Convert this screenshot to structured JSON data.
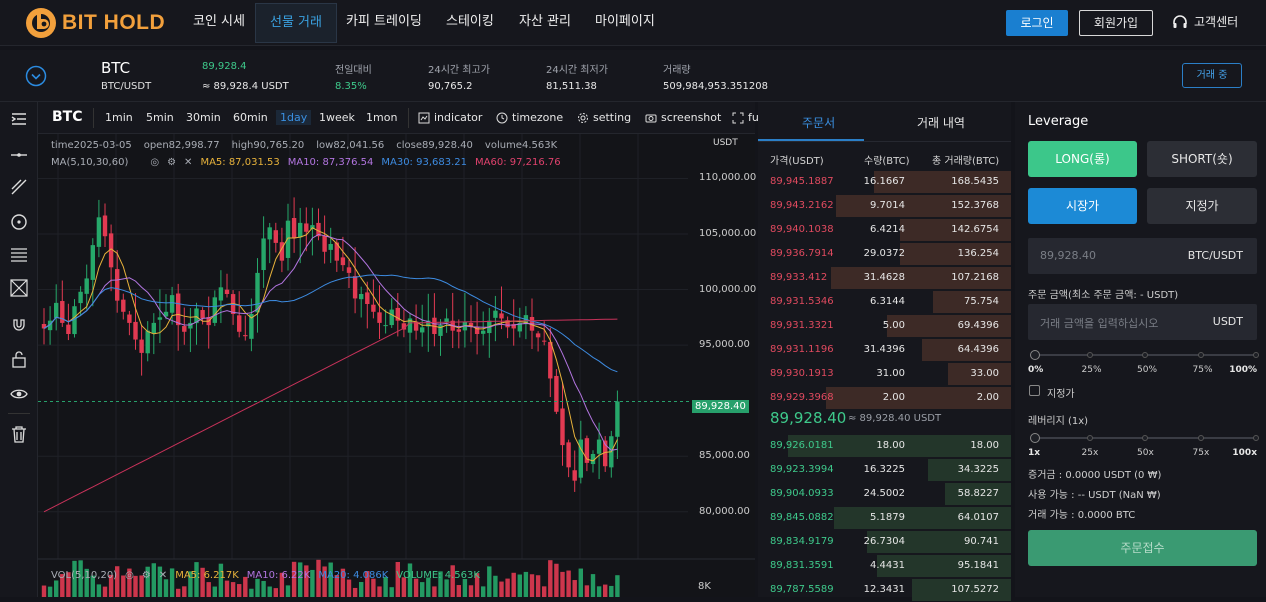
{
  "brand": {
    "name": "BIT HOLD",
    "accent": "#f2a03c"
  },
  "nav": {
    "items": [
      {
        "label": "코인 시세"
      },
      {
        "label": "선물 거래",
        "active": true
      },
      {
        "label": "카피 트레이딩"
      },
      {
        "label": "스테이킹"
      },
      {
        "label": "자산 관리"
      },
      {
        "label": "마이페이지"
      }
    ],
    "login": "로그인",
    "signup": "회원가입",
    "support": "고객센터"
  },
  "ticker": {
    "symbol": "BTC",
    "pair": "BTC/USDT",
    "price": "89,928.4",
    "price_usdt": "≈ 89,928.4 USDT",
    "change_label": "전일대비",
    "change": "8.35%",
    "high_label": "24시간 최고가",
    "high": "90,765.2",
    "low_label": "24시간 최저가",
    "low": "81,511.38",
    "vol_label": "거래량",
    "vol": "509,984,953.351208",
    "trade_btn": "거래 중"
  },
  "toolbar": {
    "symbol": "BTC",
    "timeframes": [
      "1min",
      "5min",
      "30min",
      "60min",
      "1day",
      "1week",
      "1mon"
    ],
    "active_tf": "1day",
    "tools": [
      "indicator",
      "timezone",
      "setting",
      "screenshot"
    ],
    "fullscreen": "fu"
  },
  "chart_info": {
    "time": "time2025-03-05",
    "open": "open82,998.77",
    "high": "high90,765.20",
    "low": "low82,041.56",
    "close": "close89,928.40",
    "volume": "volume4.563K",
    "ma_label": "MA(5,10,30,60)",
    "ma5": "MA5: 87,031.53",
    "ma10": "MA10: 87,376.54",
    "ma30": "MA30: 93,683.21",
    "ma60": "MA60: 97,216.76",
    "vol_label": "VOL(5,10,20)",
    "vma5": "MA5: 6.217K",
    "vma10": "MA10: 6.22K",
    "vma20": "MA20: 4.086K",
    "vvolume": "VOLUME: 4.563K",
    "axis_unit": "USDT",
    "price_tag": "89,928.40",
    "yticks": [
      "110,000.00",
      "105,000.00",
      "100,000.00",
      "95,000.00",
      "85,000.00",
      "80,000.00"
    ],
    "vol_tick": "8K"
  },
  "chart_data": {
    "type": "candlestick",
    "ylim": [
      78000,
      114000
    ],
    "last": 89928.4,
    "yticks": [
      80000,
      85000,
      95000,
      100000,
      105000,
      110000
    ]
  },
  "orderbook": {
    "tab_book": "주문서",
    "tab_history": "거래 내역",
    "col_price": "가격(USDT)",
    "col_qty": "수량(BTC)",
    "col_total": "총 거래량(BTC)",
    "asks": [
      [
        "89,945.1887",
        "16.1667",
        "168.5435",
        0.54
      ],
      [
        "89,943.2162",
        "9.7014",
        "152.3768",
        0.69
      ],
      [
        "89,940.1038",
        "6.4214",
        "142.6754",
        0.44
      ],
      [
        "89,936.7914",
        "29.0372",
        "136.254",
        0.44
      ],
      [
        "89,933.412",
        "31.4628",
        "107.2168",
        0.71
      ],
      [
        "89,931.5346",
        "6.3144",
        "75.754",
        0.31
      ],
      [
        "89,931.3321",
        "5.00",
        "69.4396",
        0.49
      ],
      [
        "89,931.1196",
        "31.4396",
        "64.4396",
        0.35
      ],
      [
        "89,930.1913",
        "31.00",
        "33.00",
        0.25
      ],
      [
        "89,929.3968",
        "2.00",
        "2.00",
        0.73
      ]
    ],
    "mid": "89,928.40",
    "mid_usdt": "≈ 89,928.40 USDT",
    "bids": [
      [
        "89,926.0181",
        "18.00",
        "18.00",
        0.88
      ],
      [
        "89,923.3994",
        "16.3225",
        "34.3225",
        0.33
      ],
      [
        "89,904.0933",
        "24.5002",
        "58.8227",
        0.26
      ],
      [
        "89,845.0882",
        "5.1879",
        "64.0107",
        0.7
      ],
      [
        "89,834.9179",
        "26.7304",
        "90.741",
        0.57
      ],
      [
        "89,831.3591",
        "4.4431",
        "95.1841",
        0.53
      ],
      [
        "89,787.5589",
        "12.3431",
        "107.5272",
        0.39
      ]
    ]
  },
  "trade": {
    "title": "Leverage",
    "long": "LONG(롱)",
    "short": "SHORT(숏)",
    "market": "시장가",
    "limit": "지정가",
    "price_ph": "89,928.40",
    "price_unit": "BTC/USDT",
    "amount_label": "주문 금액(최소 주문 금액: - USDT)",
    "amount_ph": "거래 금액을 입력하십시오",
    "amount_unit": "USDT",
    "pct": [
      "0%",
      "25%",
      "50%",
      "75%",
      "100%"
    ],
    "designated": "지정가",
    "lev_label": "레버리지  (1x)",
    "lev": [
      "1x",
      "25x",
      "50x",
      "75x",
      "100x"
    ],
    "margin": "증거금 : 0.0000 USDT   (0 ₩)",
    "avail": "사용 가능 :  -- USDT    (NaN ₩)",
    "tradable": "거래 가능 :  0.0000 BTC",
    "submit": "주문접수"
  }
}
